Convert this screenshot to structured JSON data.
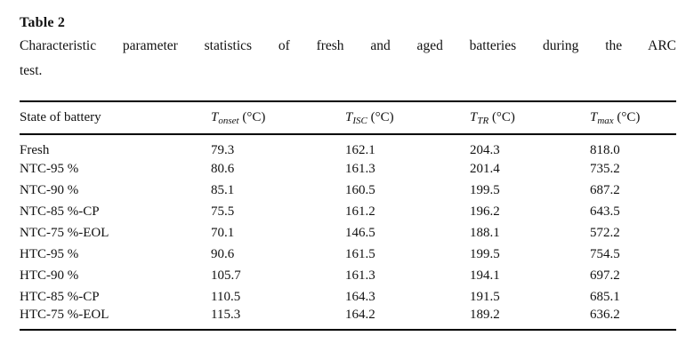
{
  "title": "Table 2",
  "caption_lines": [
    "Characteristic parameter statistics of fresh and aged batteries during the ARC",
    "test."
  ],
  "table": {
    "columns": [
      {
        "label": "State of battery"
      },
      {
        "symbol": "T",
        "sub": "onset",
        "unit": "(°C)"
      },
      {
        "symbol": "T",
        "sub": "ISC",
        "unit": "(°C)"
      },
      {
        "symbol": "T",
        "sub": "TR",
        "unit": "(°C)"
      },
      {
        "symbol": "T",
        "sub": "max",
        "unit": "(°C)"
      }
    ],
    "rows": [
      [
        "Fresh",
        "79.3",
        "162.1",
        "204.3",
        "818.0"
      ],
      [
        "NTC-95 %",
        "80.6",
        "161.3",
        "201.4",
        "735.2"
      ],
      [
        "NTC-90 %",
        "85.1",
        "160.5",
        "199.5",
        "687.2"
      ],
      [
        "NTC-85 %-CP",
        "75.5",
        "161.2",
        "196.2",
        "643.5"
      ],
      [
        "NTC-75 %-EOL",
        "70.1",
        "146.5",
        "188.1",
        "572.2"
      ],
      [
        "HTC-95 %",
        "90.6",
        "161.5",
        "199.5",
        "754.5"
      ],
      [
        "HTC-90 %",
        "105.7",
        "161.3",
        "194.1",
        "697.2"
      ],
      [
        "HTC-85 %-CP",
        "110.5",
        "164.3",
        "191.5",
        "685.1"
      ],
      [
        "HTC-75 %-EOL",
        "115.3",
        "164.2",
        "189.2",
        "636.2"
      ]
    ]
  },
  "chart_data": {
    "type": "table",
    "title": "Table 2. Characteristic parameter statistics of fresh and aged batteries during the ARC test.",
    "columns": [
      "State of battery",
      "T_onset (°C)",
      "T_ISC (°C)",
      "T_TR (°C)",
      "T_max (°C)"
    ],
    "rows": [
      [
        "Fresh",
        79.3,
        162.1,
        204.3,
        818.0
      ],
      [
        "NTC-95 %",
        80.6,
        161.3,
        201.4,
        735.2
      ],
      [
        "NTC-90 %",
        85.1,
        160.5,
        199.5,
        687.2
      ],
      [
        "NTC-85 %-CP",
        75.5,
        161.2,
        196.2,
        643.5
      ],
      [
        "NTC-75 %-EOL",
        70.1,
        146.5,
        188.1,
        572.2
      ],
      [
        "HTC-95 %",
        90.6,
        161.5,
        199.5,
        754.5
      ],
      [
        "HTC-90 %",
        105.7,
        161.3,
        194.1,
        697.2
      ],
      [
        "HTC-85 %-CP",
        110.5,
        164.3,
        191.5,
        685.1
      ],
      [
        "HTC-75 %-EOL",
        115.3,
        164.2,
        189.2,
        636.2
      ]
    ]
  }
}
